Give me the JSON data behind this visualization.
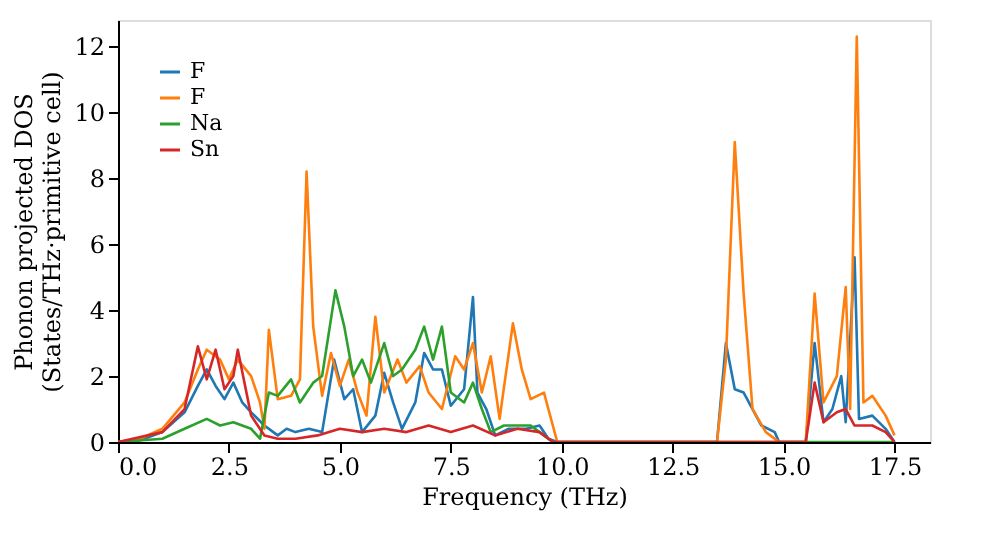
{
  "chart_data": {
    "type": "line",
    "xlabel": "Frequency (THz)",
    "ylabel": "Phonon projected DOS\n(States/THz·primitive cell)",
    "xlim": [
      0,
      18.3
    ],
    "ylim": [
      0,
      12.8
    ],
    "xticks": [
      {
        "value": 0,
        "label": "0.0"
      },
      2.5,
      {
        "value": 5,
        "label": "5.0"
      },
      7.5,
      {
        "value": 10,
        "label": "10.0"
      },
      12.5,
      {
        "value": 15,
        "label": "15.0"
      },
      17.5
    ],
    "yticks": [
      0,
      2,
      4,
      6,
      8,
      10,
      12
    ],
    "legend": "top left",
    "grid": false,
    "marker": "none",
    "line_style": "solid",
    "series": [
      {
        "name": "F",
        "color": "#1f77b4",
        "x": [
          0,
          0.5,
          1,
          1.5,
          1.8,
          2.0,
          2.2,
          2.4,
          2.6,
          2.8,
          3.0,
          3.3,
          3.5,
          3.6,
          3.8,
          4.0,
          4.3,
          4.6,
          4.87,
          5.1,
          5.3,
          5.5,
          5.8,
          6.0,
          6.2,
          6.4,
          6.7,
          6.9,
          7.1,
          7.3,
          7.5,
          7.8,
          8.0,
          8.1,
          8.3,
          8.5,
          8.8,
          9.2,
          9.5,
          9.7,
          9.9,
          13.5,
          13.7,
          13.9,
          14.1,
          14.3,
          14.5,
          14.8,
          14.9,
          15.5,
          15.7,
          15.9,
          16.1,
          16.3,
          16.4,
          16.6,
          16.7,
          17.0,
          17.3,
          17.5
        ],
        "values": [
          0,
          0.05,
          0.3,
          0.9,
          1.7,
          2.2,
          1.7,
          1.3,
          1.8,
          1.2,
          0.9,
          0.5,
          0.3,
          0.2,
          0.4,
          0.3,
          0.4,
          0.3,
          2.5,
          1.3,
          1.6,
          0.3,
          0.8,
          2.1,
          1.2,
          0.4,
          1.2,
          2.7,
          2.2,
          2.2,
          1.1,
          1.6,
          4.4,
          1.5,
          1.0,
          0.2,
          0.4,
          0.4,
          0.5,
          0.1,
          0,
          0,
          3.0,
          1.6,
          1.5,
          1.0,
          0.5,
          0.3,
          0,
          0,
          3.0,
          0.6,
          1.0,
          2.0,
          0.6,
          5.6,
          0.7,
          0.8,
          0.4,
          0
        ]
      },
      {
        "name": "F",
        "color": "#ff7f0e",
        "x": [
          0,
          0.5,
          1,
          1.5,
          1.8,
          2.0,
          2.3,
          2.5,
          2.7,
          3.0,
          3.2,
          3.3,
          3.4,
          3.6,
          3.9,
          4.1,
          4.25,
          4.4,
          4.6,
          4.8,
          5.0,
          5.2,
          5.4,
          5.6,
          5.8,
          6.0,
          6.3,
          6.5,
          6.8,
          7.0,
          7.3,
          7.6,
          7.8,
          8.0,
          8.2,
          8.4,
          8.6,
          8.9,
          9.1,
          9.3,
          9.6,
          9.9,
          13.5,
          13.7,
          13.9,
          14.1,
          14.3,
          14.6,
          14.9,
          15.5,
          15.7,
          15.9,
          16.2,
          16.4,
          16.5,
          16.65,
          16.8,
          17.0,
          17.3,
          17.5
        ],
        "values": [
          0,
          0.1,
          0.4,
          1.2,
          2.2,
          2.8,
          2.5,
          1.9,
          2.5,
          2.0,
          1.2,
          0.4,
          3.4,
          1.3,
          1.4,
          1.9,
          8.2,
          3.5,
          1.4,
          2.7,
          1.7,
          2.5,
          1.5,
          0.8,
          3.8,
          1.5,
          2.5,
          1.8,
          2.3,
          1.5,
          1.0,
          2.6,
          2.2,
          3.0,
          1.5,
          2.6,
          0.7,
          3.6,
          2.2,
          1.3,
          1.5,
          0,
          0,
          2.5,
          9.1,
          4.5,
          1.0,
          0.3,
          0,
          0,
          4.5,
          1.2,
          2.0,
          4.7,
          1.0,
          12.3,
          1.2,
          1.4,
          0.8,
          0.2
        ]
      },
      {
        "name": "Na",
        "color": "#2ca02c",
        "x": [
          0,
          1,
          1.5,
          2.0,
          2.3,
          2.6,
          3.0,
          3.2,
          3.4,
          3.6,
          3.9,
          4.1,
          4.4,
          4.6,
          4.9,
          5.1,
          5.3,
          5.5,
          5.7,
          6.0,
          6.2,
          6.4,
          6.7,
          6.9,
          7.1,
          7.3,
          7.5,
          7.8,
          8.0,
          8.2,
          8.4,
          8.7,
          9.0,
          9.3,
          9.5,
          9.8,
          13.5,
          17.5
        ],
        "values": [
          0,
          0.1,
          0.4,
          0.7,
          0.5,
          0.6,
          0.4,
          0.1,
          1.5,
          1.4,
          1.9,
          1.2,
          1.8,
          2.0,
          4.6,
          3.5,
          2.0,
          2.5,
          1.8,
          3.0,
          2.0,
          2.2,
          2.8,
          3.5,
          2.5,
          3.5,
          1.5,
          1.2,
          1.8,
          1.0,
          0.3,
          0.5,
          0.5,
          0.5,
          0.3,
          0,
          0,
          0
        ]
      },
      {
        "name": "Sn",
        "color": "#d62728",
        "x": [
          0,
          1,
          1.5,
          1.8,
          2.0,
          2.2,
          2.4,
          2.6,
          2.7,
          3.0,
          3.3,
          3.6,
          4.0,
          4.5,
          5.0,
          5.5,
          6.0,
          6.5,
          7.0,
          7.5,
          8.0,
          8.5,
          9.0,
          9.5,
          9.8,
          15.5,
          15.7,
          15.9,
          16.2,
          16.4,
          16.6,
          17.0,
          17.3,
          17.5
        ],
        "values": [
          0,
          0.3,
          1.0,
          2.9,
          1.9,
          2.8,
          1.6,
          2.0,
          2.8,
          0.8,
          0.2,
          0.1,
          0.1,
          0.2,
          0.4,
          0.3,
          0.4,
          0.3,
          0.5,
          0.3,
          0.5,
          0.2,
          0.4,
          0.3,
          0,
          0,
          1.8,
          0.6,
          0.9,
          1.0,
          0.5,
          0.5,
          0.3,
          0
        ]
      }
    ]
  }
}
